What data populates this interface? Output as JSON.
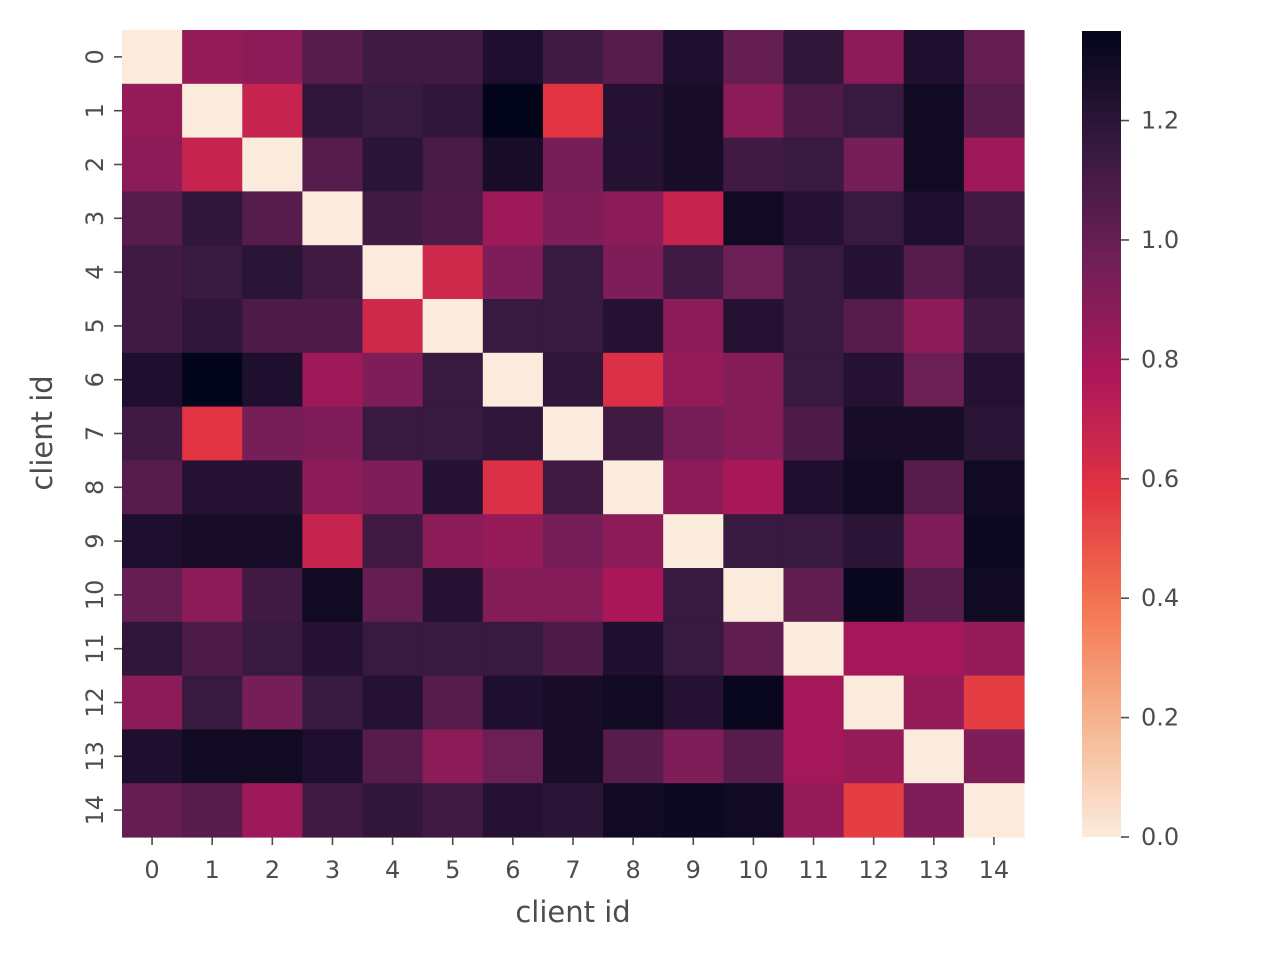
{
  "chart_data": {
    "type": "heatmap",
    "title": "",
    "xlabel": "client id",
    "ylabel": "client id",
    "x_categories": [
      "0",
      "1",
      "2",
      "3",
      "4",
      "5",
      "6",
      "7",
      "8",
      "9",
      "10",
      "11",
      "12",
      "13",
      "14"
    ],
    "y_categories": [
      "0",
      "1",
      "2",
      "3",
      "4",
      "5",
      "6",
      "7",
      "8",
      "9",
      "10",
      "11",
      "12",
      "13",
      "14"
    ],
    "values": [
      [
        0.0,
        0.85,
        0.88,
        1.05,
        1.12,
        1.12,
        1.25,
        1.12,
        1.05,
        1.25,
        1.0,
        1.18,
        0.88,
        1.25,
        1.0
      ],
      [
        0.85,
        0.0,
        0.68,
        1.18,
        1.15,
        1.18,
        1.35,
        0.58,
        1.22,
        1.27,
        0.88,
        1.08,
        1.15,
        1.3,
        1.05
      ],
      [
        0.88,
        0.68,
        0.0,
        1.05,
        1.2,
        1.1,
        1.27,
        0.95,
        1.22,
        1.27,
        1.12,
        1.15,
        0.95,
        1.3,
        0.82
      ],
      [
        1.05,
        1.18,
        1.05,
        0.0,
        1.12,
        1.08,
        0.82,
        0.92,
        0.88,
        0.68,
        1.3,
        1.22,
        1.15,
        1.25,
        1.12
      ],
      [
        1.12,
        1.15,
        1.2,
        1.12,
        0.0,
        0.65,
        0.92,
        1.15,
        0.92,
        1.12,
        0.98,
        1.15,
        1.22,
        1.05,
        1.18
      ],
      [
        1.12,
        1.18,
        1.08,
        1.08,
        0.65,
        0.0,
        1.15,
        1.15,
        1.22,
        0.88,
        1.22,
        1.15,
        1.05,
        0.88,
        1.12
      ],
      [
        1.25,
        1.35,
        1.25,
        0.82,
        0.92,
        1.15,
        0.0,
        1.18,
        0.6,
        0.85,
        0.9,
        1.15,
        1.22,
        0.98,
        1.22
      ],
      [
        1.12,
        0.58,
        0.95,
        0.92,
        1.15,
        1.15,
        1.18,
        0.0,
        1.12,
        0.95,
        0.9,
        1.08,
        1.27,
        1.27,
        1.2
      ],
      [
        1.05,
        1.22,
        1.22,
        0.88,
        0.92,
        1.22,
        0.6,
        1.12,
        0.0,
        0.88,
        0.78,
        1.25,
        1.3,
        1.05,
        1.3
      ],
      [
        1.25,
        1.27,
        1.27,
        0.68,
        1.12,
        0.88,
        0.85,
        0.95,
        0.88,
        0.0,
        1.15,
        1.15,
        1.2,
        0.92,
        1.32
      ],
      [
        1.0,
        0.88,
        1.12,
        1.3,
        1.0,
        1.22,
        0.9,
        0.9,
        0.78,
        1.15,
        0.0,
        1.02,
        1.33,
        1.05,
        1.3
      ],
      [
        1.18,
        1.08,
        1.15,
        1.22,
        1.15,
        1.15,
        1.15,
        1.08,
        1.25,
        1.15,
        1.02,
        0.0,
        0.8,
        0.8,
        0.85
      ],
      [
        0.88,
        1.15,
        0.95,
        1.15,
        1.22,
        1.05,
        1.25,
        1.27,
        1.3,
        1.22,
        1.33,
        0.8,
        0.0,
        0.85,
        0.55
      ],
      [
        1.25,
        1.3,
        1.3,
        1.25,
        1.05,
        0.88,
        0.98,
        1.27,
        1.05,
        0.92,
        1.05,
        0.8,
        0.85,
        0.0,
        0.92
      ],
      [
        1.0,
        1.05,
        0.82,
        1.12,
        1.18,
        1.12,
        1.22,
        1.2,
        1.3,
        1.32,
        1.3,
        0.85,
        0.55,
        0.92,
        0.0
      ]
    ],
    "colorbar": {
      "min": 0.0,
      "max": 1.35,
      "ticks": [
        0.0,
        0.2,
        0.4,
        0.6,
        0.8,
        1.0,
        1.2
      ],
      "tick_labels": [
        "0.0",
        "0.2",
        "0.4",
        "0.6",
        "0.8",
        "1.0",
        "1.2"
      ],
      "colormap": "rocket_r",
      "color_stops": [
        "#03051a",
        "#36193e",
        "#701f57",
        "#ad1759",
        "#e13342",
        "#f37651",
        "#f6b48f",
        "#faebdd"
      ]
    },
    "grid": false,
    "legend": "colorbar-right"
  }
}
